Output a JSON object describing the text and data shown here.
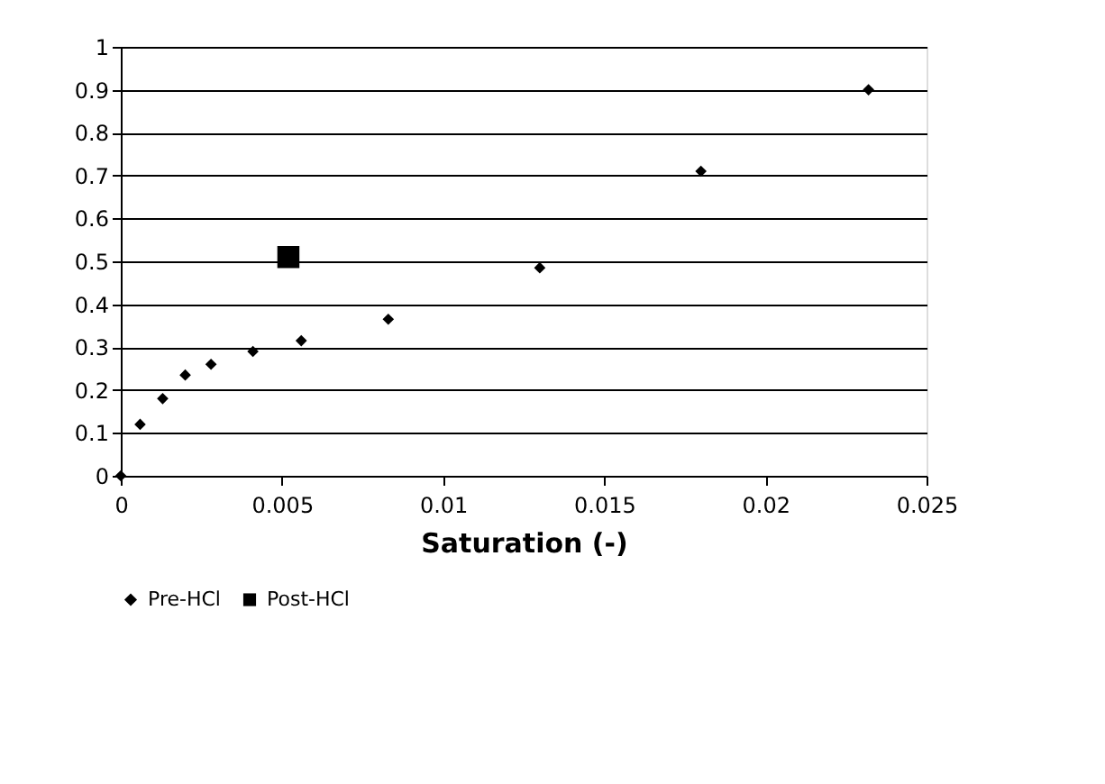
{
  "chart_data": {
    "type": "scatter",
    "xlabel": "Saturation (-)",
    "xlim": [
      0,
      0.025
    ],
    "xticks": [
      0,
      0.005,
      0.01,
      0.015,
      0.02,
      0.025
    ],
    "ylim": [
      0,
      1
    ],
    "yticks": [
      0,
      0.1,
      0.2,
      0.3,
      0.4,
      0.5,
      0.6,
      0.7,
      0.8,
      0.9,
      1
    ],
    "grid": "y",
    "legend": "bottom",
    "series": [
      {
        "name": "Pre-HCl",
        "color": "#000000",
        "marker": "diamond",
        "x": [
          0,
          0.0006,
          0.0013,
          0.002,
          0.0028,
          0.0041,
          0.0056,
          0.0083,
          0.013,
          0.018,
          0.0232
        ],
        "values": [
          0,
          0.12,
          0.18,
          0.235,
          0.26,
          0.29,
          0.315,
          0.365,
          0.485,
          0.71,
          0.9
        ]
      },
      {
        "name": "Post-HCl",
        "color": "#000000",
        "marker": "square",
        "x": [
          0.0052
        ],
        "values": [
          0.51
        ]
      }
    ]
  }
}
